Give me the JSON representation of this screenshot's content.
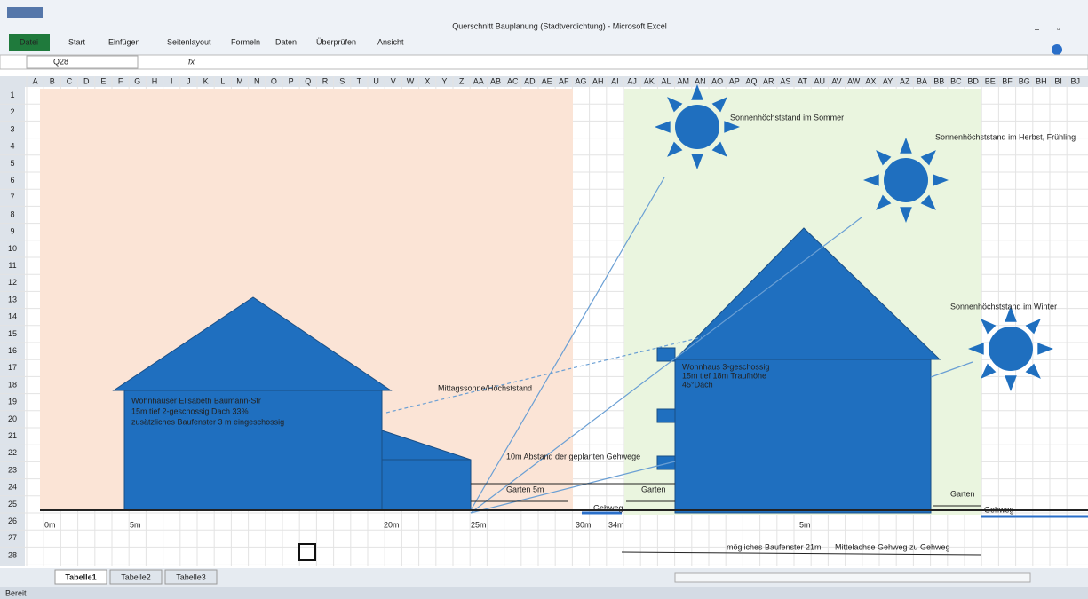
{
  "window": {
    "title": "Querschnitt Bauplanung (Stadtverdichtung) - Microsoft Excel",
    "menu_tabs": [
      "Datei",
      "Start",
      "Einfügen",
      "Seitenlayout",
      "Formeln",
      "Daten",
      "Überprüfen",
      "Ansicht"
    ],
    "name_box": "Q28",
    "fx": "fx",
    "status": "Bereit"
  },
  "sheet": {
    "columns": [
      "A",
      "B",
      "C",
      "D",
      "E",
      "F",
      "G",
      "H",
      "I",
      "J",
      "K",
      "L",
      "M",
      "N",
      "O",
      "P",
      "Q",
      "R",
      "S",
      "T",
      "U",
      "V",
      "W",
      "X",
      "Y",
      "Z",
      "AA",
      "AB",
      "AC",
      "AD",
      "AE",
      "AF",
      "AG",
      "AH",
      "AI",
      "AJ",
      "AK",
      "AL",
      "AM",
      "AN",
      "AO",
      "AP",
      "AQ",
      "AR",
      "AS",
      "AT",
      "AU",
      "AV",
      "AW",
      "AX",
      "AY",
      "AZ",
      "BA",
      "BB",
      "BC",
      "BD",
      "BE",
      "BF",
      "BG",
      "BH",
      "BI",
      "BJ"
    ],
    "rows": [
      1,
      2,
      3,
      4,
      5,
      6,
      7,
      8,
      9,
      10,
      11,
      12,
      13,
      14,
      15,
      16,
      17,
      18,
      19,
      20,
      21,
      22,
      23,
      24,
      25,
      26,
      27,
      28
    ],
    "tabs": [
      "Tabelle1",
      "Tabelle2",
      "Tabelle3"
    ]
  },
  "drawing": {
    "labels": [
      "Sonnenhöchststand im Sommer",
      "Sonnenhöchststand im Herbst, Frühling",
      "Sonnenhöchststand im Winter",
      "Mittagssonne/Höchststand",
      "10m Abstand der geplanten Gehwege",
      "Garten 5m",
      "Garten",
      "Gehweg",
      "Garten",
      "Gehweg",
      "mögliches Baufenster 21m",
      "Mittelachse Gehweg zu Gehweg"
    ],
    "left_house_text": [
      "Wohnhäuser Elisabeth Baumann-Str",
      "15m tief 2-geschossig Dach 33%",
      "zusätzliches Baufenster 3 m eingeschossig"
    ],
    "right_house_text": [
      "Wohnhaus 3-geschossig",
      "15m tief 18m Traufhöhe",
      "45°Dach"
    ],
    "distance_labels": [
      "0m",
      "5m",
      "20m",
      "25m",
      "30m",
      "34m",
      "5m"
    ]
  }
}
